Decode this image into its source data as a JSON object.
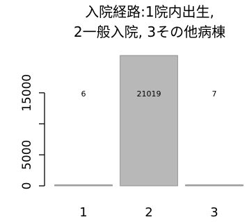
{
  "chart_data": {
    "type": "bar",
    "title_lines": [
      "入院経路:1院内出生,",
      "2一般入院, 3その他病棟"
    ],
    "categories": [
      "1",
      "2",
      "3"
    ],
    "values": [
      6,
      21019,
      7
    ],
    "data_labels": [
      "6",
      "21019",
      "7"
    ],
    "yticks": [
      0,
      5000,
      10000,
      15000
    ],
    "ytick_labels": [
      "0",
      "5000",
      "",
      "15000"
    ],
    "ylim": [
      0,
      21019
    ],
    "xlabel": "",
    "ylabel": "",
    "grid": false,
    "legend": "none",
    "colors": {
      "bar": "#b8b8b8",
      "bar_border": "#808080",
      "axis": "#000000"
    }
  }
}
